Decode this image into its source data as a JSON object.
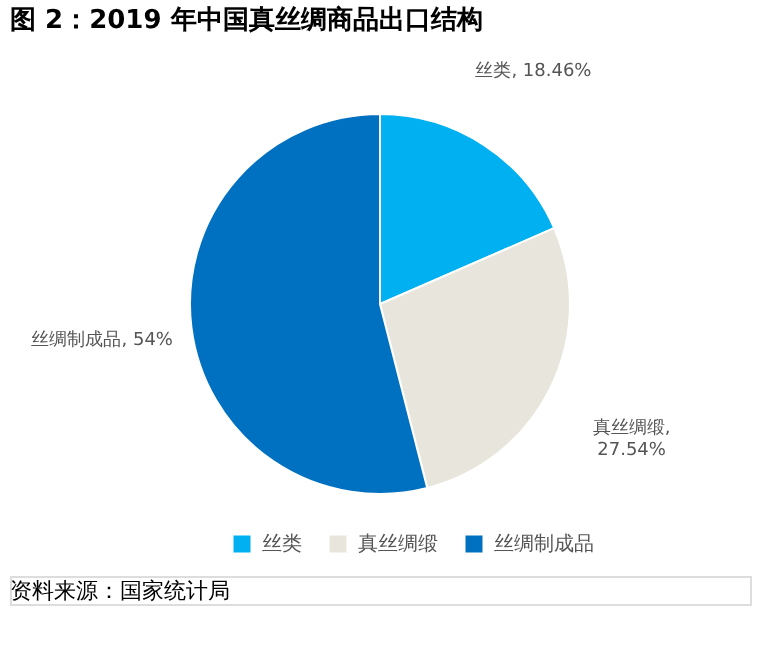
{
  "chart_data": {
    "type": "pie",
    "title": "图 2：2019 年中国真丝绸商品出口结构",
    "categories": [
      "丝类",
      "真丝绸缎",
      "丝绸制成品"
    ],
    "values": [
      18.46,
      27.54,
      54
    ],
    "value_labels": [
      "丝类, 18.46%",
      "真丝绸缎,\n27.54%",
      "丝绸制成品, 54%"
    ],
    "colors": [
      "#00b0f0",
      "#e8e6dc",
      "#0070c0"
    ],
    "legend": "bottom",
    "annotations": [
      "资料来源：国家统计局"
    ]
  }
}
